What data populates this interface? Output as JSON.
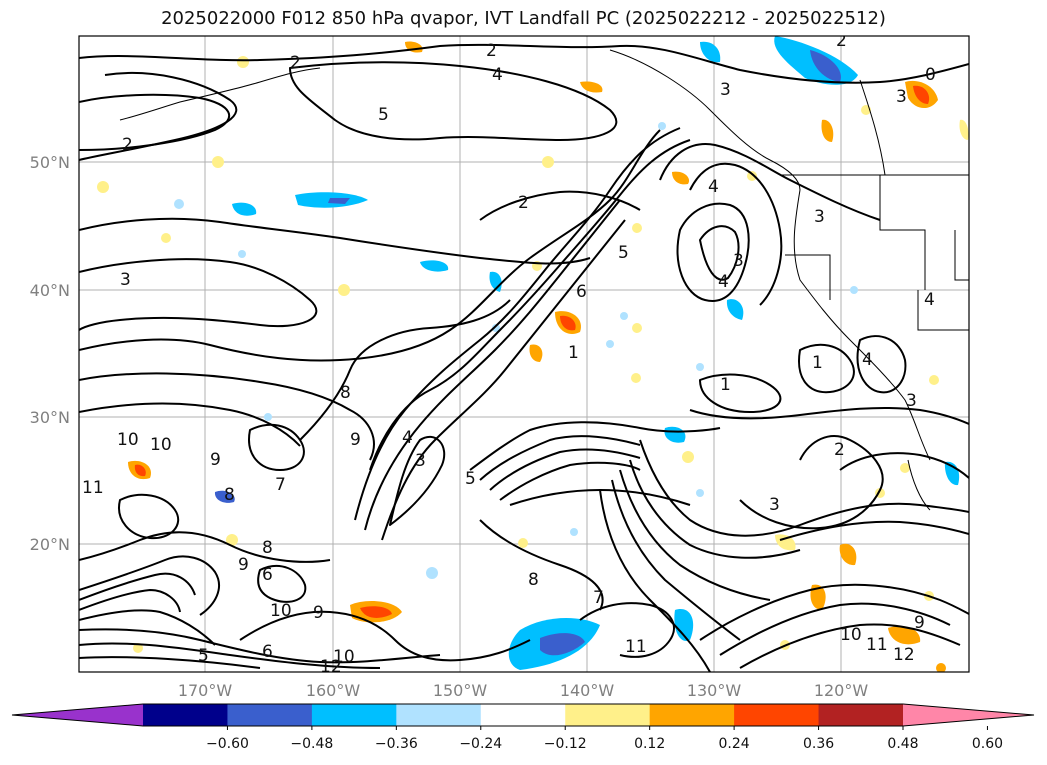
{
  "title": "2025022000 F012 850 hPa qvapor, IVT Landfall PC (2025022212 - 2025022512)",
  "lat_labels": [
    "50°N",
    "40°N",
    "30°N",
    "20°N"
  ],
  "lon_labels": [
    "170°W",
    "160°W",
    "150°W",
    "140°W",
    "130°W",
    "120°W"
  ],
  "colorbar": {
    "ticks": [
      "−0.60",
      "−0.48",
      "−0.36",
      "−0.24",
      "−0.12",
      "0.12",
      "0.24",
      "0.36",
      "0.48",
      "0.60"
    ],
    "colors": [
      "#9932cc",
      "#00008b",
      "#3a5fcd",
      "#00bfff",
      "#b0e2ff",
      "#ffffff",
      "#fff08a",
      "#ffa500",
      "#ff4500",
      "#b22222",
      "#ff86a8"
    ],
    "under_color": "#9932cc",
    "over_color": "#ff86a8"
  },
  "contour_labels": [
    "2",
    "4",
    "5",
    "2",
    "3",
    "2",
    "3",
    "4",
    "5",
    "6",
    "4",
    "3",
    "1",
    "2",
    "3",
    "1",
    "9",
    "8",
    "4",
    "3",
    "5",
    "10",
    "11",
    "9",
    "8",
    "7",
    "10",
    "8",
    "9",
    "6",
    "10",
    "9",
    "6",
    "5",
    "12",
    "10",
    "11",
    "12",
    "11",
    "9",
    "10",
    "8",
    "7",
    "2",
    "3",
    "2",
    "4",
    "4",
    "1",
    "3",
    "0",
    "3"
  ]
}
